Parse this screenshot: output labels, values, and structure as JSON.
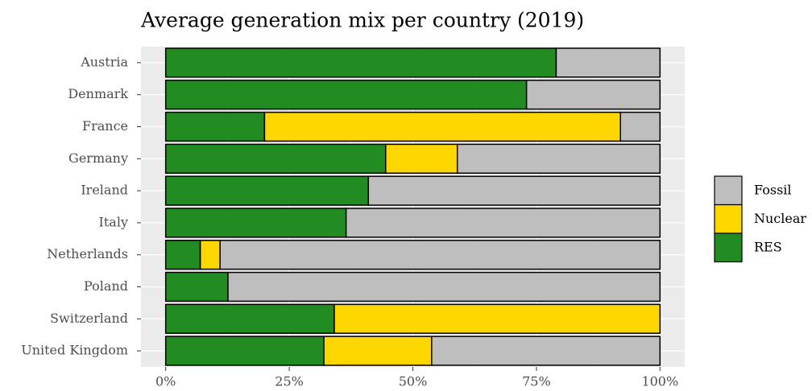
{
  "chart_data": {
    "type": "stacked-bar",
    "orientation": "horizontal",
    "title": "Average generation mix per country (2019)",
    "categories": [
      "Austria",
      "Denmark",
      "France",
      "Germany",
      "Ireland",
      "Italy",
      "Netherlands",
      "Poland",
      "Switzerland",
      "United Kingdom"
    ],
    "series": [
      {
        "name": "Fossil",
        "color": "#bebebe",
        "values": [
          21,
          27,
          8,
          41,
          59,
          63.5,
          89,
          87.4,
          0,
          46.2
        ]
      },
      {
        "name": "Nuclear",
        "color": "#ffd700",
        "values": [
          0,
          0,
          72,
          14.5,
          0,
          0,
          4,
          0,
          65.9,
          21.8
        ]
      },
      {
        "name": "RES",
        "color": "#228b22",
        "values": [
          79,
          73,
          20,
          44.5,
          41,
          36.5,
          7,
          12.6,
          34.1,
          32
        ]
      }
    ],
    "xlim": [
      -5,
      105
    ],
    "xticks": [
      {
        "value": 0,
        "label": "0%"
      },
      {
        "value": 25,
        "label": "25%"
      },
      {
        "value": 50,
        "label": "50%"
      },
      {
        "value": 75,
        "label": "75%"
      },
      {
        "value": 100,
        "label": "100%"
      }
    ],
    "grid": true,
    "legend": "right"
  }
}
